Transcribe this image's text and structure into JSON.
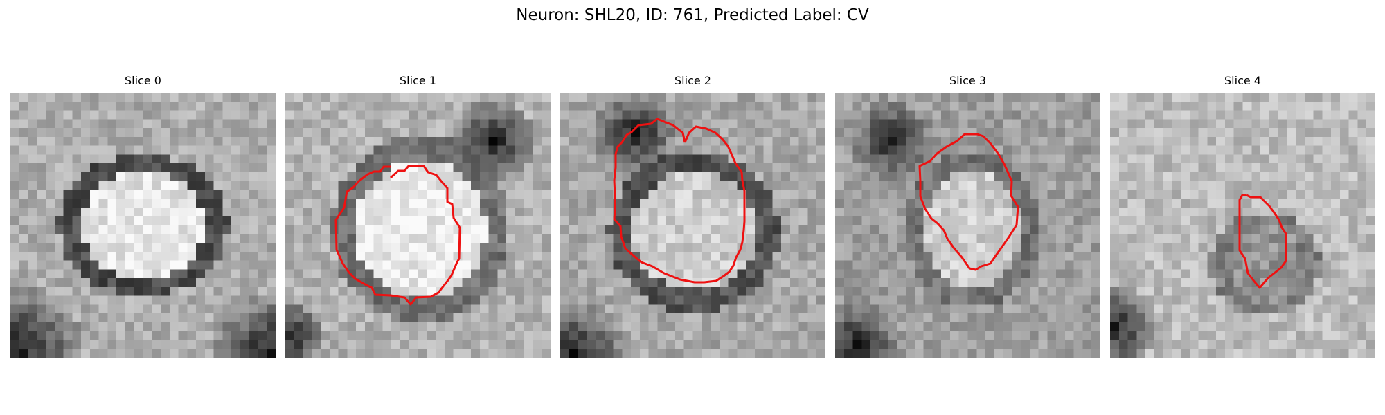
{
  "figure": {
    "title": "Neuron: SHL20, ID: 761, Predicted Label: CV"
  },
  "panels": [
    {
      "title": "Slice 0",
      "has_contour": false
    },
    {
      "title": "Slice 1",
      "has_contour": true,
      "contour_color": "#ee1111"
    },
    {
      "title": "Slice 2",
      "has_contour": true,
      "contour_color": "#ee1111"
    },
    {
      "title": "Slice 3",
      "has_contour": true,
      "contour_color": "#ee1111"
    },
    {
      "title": "Slice 4",
      "has_contour": true,
      "contour_color": "#ee1111"
    }
  ],
  "colors": {
    "contour": "#ee1111",
    "colormap": "grayscale"
  }
}
